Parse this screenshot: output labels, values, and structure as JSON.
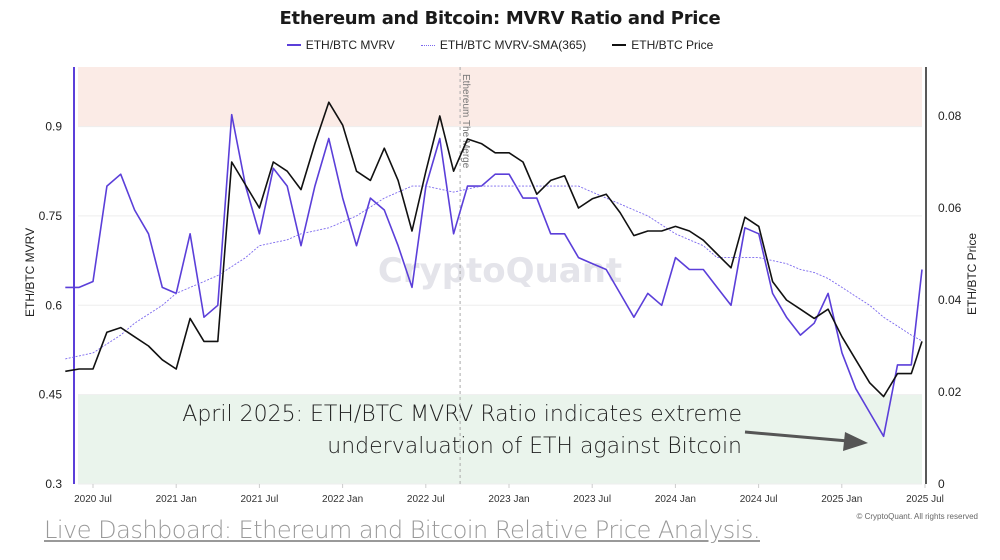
{
  "chart_data": {
    "type": "line",
    "title": "Ethereum and Bitcoin: MVRV Ratio and Price",
    "ylabel_left": "ETH/BTC MVRV",
    "ylabel_right": "ETH/BTC Price",
    "ylim_left": [
      0.3,
      1.0
    ],
    "ylim_right": [
      0,
      0.09
    ],
    "yticks_left": [
      "0.3",
      "0.45",
      "0.6",
      "0.75",
      "0.9"
    ],
    "yticks_right": [
      "0",
      "0.02",
      "0.04",
      "0.06",
      "0.08"
    ],
    "xticks": [
      "2020 Jul",
      "2021 Jan",
      "2021 Jul",
      "2022 Jan",
      "2022 Jul",
      "2023 Jan",
      "2023 Jul",
      "2024 Jan",
      "2024 Jul",
      "2025 Jan",
      "2025 Jul"
    ],
    "grid": true,
    "legend_position": "top",
    "bands": [
      {
        "axis": "left",
        "from": 0.9,
        "to": 1.0,
        "color": "#fbebe6"
      },
      {
        "axis": "left",
        "from": 0.3,
        "to": 0.45,
        "color": "#eaf4ec"
      }
    ],
    "event": {
      "date": "2022-09-15",
      "label": "Ethereum The Merge"
    },
    "x": [
      "2020-05",
      "2020-06",
      "2020-07",
      "2020-08",
      "2020-09",
      "2020-10",
      "2020-11",
      "2020-12",
      "2021-01",
      "2021-02",
      "2021-03",
      "2021-04",
      "2021-05",
      "2021-06",
      "2021-07",
      "2021-08",
      "2021-09",
      "2021-10",
      "2021-11",
      "2021-12",
      "2022-01",
      "2022-02",
      "2022-03",
      "2022-04",
      "2022-05",
      "2022-06",
      "2022-07",
      "2022-08",
      "2022-09",
      "2022-10",
      "2022-11",
      "2022-12",
      "2023-01",
      "2023-02",
      "2023-03",
      "2023-04",
      "2023-05",
      "2023-06",
      "2023-07",
      "2023-08",
      "2023-09",
      "2023-10",
      "2023-11",
      "2023-12",
      "2024-01",
      "2024-02",
      "2024-03",
      "2024-04",
      "2024-05",
      "2024-06",
      "2024-07",
      "2024-08",
      "2024-09",
      "2024-10",
      "2024-11",
      "2024-12",
      "2025-01",
      "2025-02",
      "2025-03",
      "2025-04",
      "2025-05",
      "2025-06",
      "2025-07"
    ],
    "series": [
      {
        "name": "ETH/BTC MVRV",
        "axis": "left",
        "color": "#5b3fd9",
        "style": "solid",
        "values": [
          0.63,
          0.63,
          0.64,
          0.8,
          0.82,
          0.76,
          0.72,
          0.63,
          0.62,
          0.72,
          0.58,
          0.6,
          0.92,
          0.8,
          0.72,
          0.83,
          0.8,
          0.7,
          0.8,
          0.88,
          0.78,
          0.7,
          0.78,
          0.76,
          0.7,
          0.63,
          0.8,
          0.88,
          0.72,
          0.8,
          0.8,
          0.82,
          0.82,
          0.78,
          0.78,
          0.72,
          0.72,
          0.68,
          0.67,
          0.66,
          0.62,
          0.58,
          0.62,
          0.6,
          0.68,
          0.66,
          0.66,
          0.63,
          0.6,
          0.73,
          0.72,
          0.62,
          0.58,
          0.55,
          0.57,
          0.62,
          0.52,
          0.46,
          0.42,
          0.38,
          0.5,
          0.5,
          0.66
        ]
      },
      {
        "name": "ETH/BTC MVRV-SMA(365)",
        "axis": "left",
        "color": "#7b68ee",
        "style": "dotted",
        "values": [
          0.51,
          0.515,
          0.52,
          0.535,
          0.55,
          0.57,
          0.585,
          0.6,
          0.62,
          0.63,
          0.64,
          0.65,
          0.665,
          0.68,
          0.7,
          0.705,
          0.71,
          0.72,
          0.725,
          0.73,
          0.74,
          0.75,
          0.765,
          0.78,
          0.79,
          0.8,
          0.8,
          0.795,
          0.79,
          0.795,
          0.8,
          0.8,
          0.8,
          0.8,
          0.8,
          0.8,
          0.8,
          0.8,
          0.79,
          0.78,
          0.77,
          0.76,
          0.75,
          0.735,
          0.72,
          0.71,
          0.7,
          0.68,
          0.68,
          0.68,
          0.68,
          0.675,
          0.67,
          0.66,
          0.655,
          0.645,
          0.63,
          0.615,
          0.6,
          0.58,
          0.565,
          0.55,
          0.54
        ]
      },
      {
        "name": "ETH/BTC Price",
        "axis": "right",
        "color": "#111111",
        "style": "solid",
        "values": [
          0.0245,
          0.025,
          0.025,
          0.033,
          0.034,
          0.032,
          0.03,
          0.027,
          0.025,
          0.036,
          0.031,
          0.031,
          0.07,
          0.065,
          0.06,
          0.07,
          0.068,
          0.064,
          0.074,
          0.083,
          0.078,
          0.068,
          0.066,
          0.073,
          0.066,
          0.055,
          0.068,
          0.08,
          0.068,
          0.075,
          0.074,
          0.072,
          0.072,
          0.07,
          0.063,
          0.066,
          0.067,
          0.06,
          0.062,
          0.063,
          0.059,
          0.054,
          0.055,
          0.055,
          0.056,
          0.055,
          0.053,
          0.05,
          0.047,
          0.058,
          0.056,
          0.044,
          0.04,
          0.038,
          0.036,
          0.038,
          0.032,
          0.027,
          0.022,
          0.019,
          0.024,
          0.024,
          0.031
        ]
      }
    ],
    "annotation": {
      "line1": "April 2025: ETH/BTC MVRV Ratio indicates extreme",
      "line2": "undervaluation of ETH against Bitcoin"
    },
    "watermark": "CryptoQuant",
    "copyright": "© CryptoQuant. All rights reserved"
  },
  "footer_link": "Live Dashboard: Ethereum and Bitcoin Relative Price Analysis."
}
